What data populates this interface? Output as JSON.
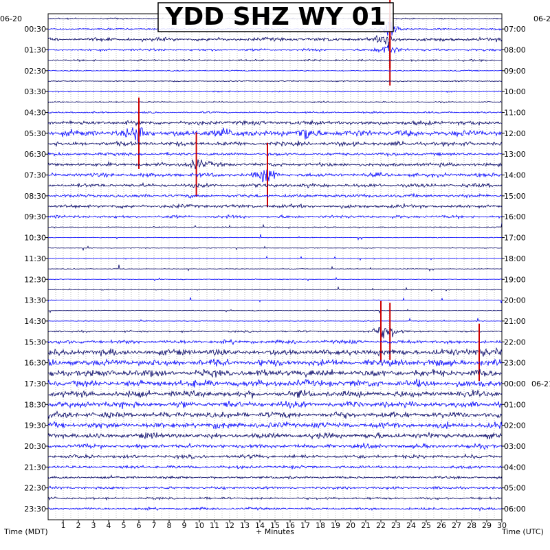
{
  "chart_data": {
    "type": "line",
    "title": "YDD SHZ WY 01",
    "xlabel": "+ Minutes",
    "ylabel_left": "Time (MDT)",
    "ylabel_right": "Time (UTC)",
    "date_left": "06-20",
    "date_right": "06-2",
    "date_right_rollover": "06-21",
    "xlim": [
      0,
      30
    ],
    "x_ticks": [
      "1",
      "2",
      "3",
      "4",
      "5",
      "6",
      "7",
      "8",
      "9",
      "10",
      "11",
      "12",
      "13",
      "14",
      "15",
      "16",
      "17",
      "18",
      "19",
      "20",
      "21",
      "22",
      "23",
      "24",
      "25",
      "26",
      "27",
      "28",
      "29",
      "30"
    ],
    "left_ticks": [
      "00:30",
      "01:30",
      "02:30",
      "03:30",
      "04:30",
      "05:30",
      "06:30",
      "07:30",
      "08:30",
      "09:30",
      "10:30",
      "11:30",
      "12:30",
      "13:30",
      "14:30",
      "15:30",
      "16:30",
      "17:30",
      "18:30",
      "19:30",
      "20:30",
      "21:30",
      "22:30",
      "23:30"
    ],
    "right_ticks": [
      "07:00",
      "08:00",
      "09:00",
      "10:00",
      "11:00",
      "12:00",
      "13:00",
      "14:00",
      "15:00",
      "16:00",
      "17:00",
      "18:00",
      "19:00",
      "20:00",
      "21:00",
      "22:00",
      "23:00",
      "00:00",
      "01:00",
      "02:00",
      "03:00",
      "04:00",
      "05:00",
      "06:00"
    ],
    "grid": true,
    "trace_colors": [
      "#000066",
      "#cc0000",
      "#0000ff",
      "#0000aa"
    ],
    "trace_count": 48,
    "trace_minutes": 30,
    "activity_level": [
      0.15,
      0.2,
      0.5,
      0.3,
      0.2,
      0.1,
      0.1,
      0.1,
      0.15,
      0.2,
      0.6,
      0.9,
      0.6,
      0.4,
      0.5,
      0.55,
      0.5,
      0.45,
      0.5,
      0.4,
      0.05,
      0.02,
      0.02,
      0.03,
      0.03,
      0.03,
      0.03,
      0.03,
      0.03,
      0.02,
      0.2,
      0.5,
      0.9,
      0.95,
      1.0,
      1.0,
      0.95,
      0.9,
      0.85,
      0.85,
      0.8,
      0.6,
      0.5,
      0.4,
      0.35,
      0.35,
      0.3,
      0.3
    ],
    "events": [
      {
        "trace": 1,
        "minute": 22.6,
        "amp": 2.2,
        "clip": true
      },
      {
        "trace": 2,
        "minute": 22.5,
        "amp": 1.8,
        "clip": false
      },
      {
        "trace": 3,
        "minute": 22.6,
        "amp": 2.0,
        "clip": true
      },
      {
        "trace": 11,
        "minute": 6.0,
        "amp": 2.0,
        "clip": true
      },
      {
        "trace": 11,
        "minute": 11.5,
        "amp": 1.5,
        "clip": false
      },
      {
        "trace": 11,
        "minute": 17.2,
        "amp": 1.6,
        "clip": false
      },
      {
        "trace": 14,
        "minute": 9.8,
        "amp": 1.8,
        "clip": true
      },
      {
        "trace": 15,
        "minute": 14.5,
        "amp": 1.8,
        "clip": true
      },
      {
        "trace": 30,
        "minute": 22.0,
        "amp": 1.7,
        "clip": true
      },
      {
        "trace": 30,
        "minute": 22.6,
        "amp": 1.6,
        "clip": true
      },
      {
        "trace": 32,
        "minute": 28.5,
        "amp": 1.6,
        "clip": true
      }
    ]
  }
}
